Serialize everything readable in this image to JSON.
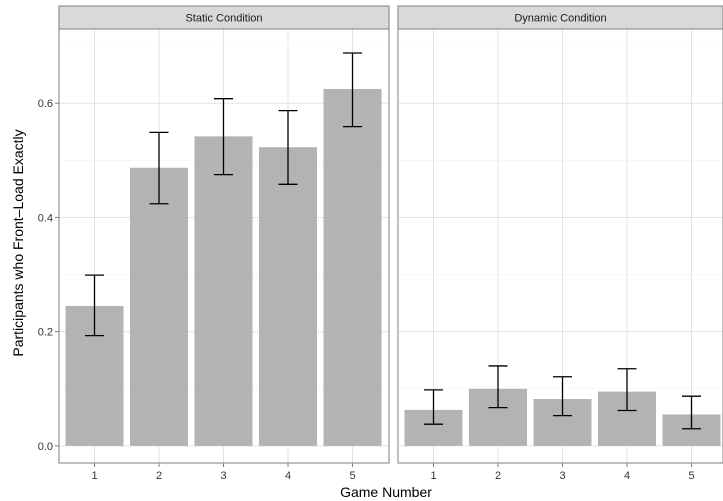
{
  "chart_data": {
    "type": "bar",
    "xlabel": "Game Number",
    "ylabel": "Participants who Front–Load Exactly",
    "ylim": [
      -0.03,
      0.73
    ],
    "yticks": [
      0.0,
      0.2,
      0.4,
      0.6
    ],
    "ytick_labels": [
      "0.0",
      "0.2",
      "0.4",
      "0.6"
    ],
    "categories": [
      "1",
      "2",
      "3",
      "4",
      "5"
    ],
    "bar_color": "#b3b3b3",
    "errorbar_color": "#000000",
    "grid": true,
    "facets": [
      {
        "title": "Static Condition",
        "values": [
          0.245,
          0.487,
          0.542,
          0.523,
          0.625
        ],
        "err_low": [
          0.193,
          0.424,
          0.475,
          0.458,
          0.559
        ],
        "err_high": [
          0.299,
          0.549,
          0.608,
          0.587,
          0.688
        ]
      },
      {
        "title": "Dynamic Condition",
        "values": [
          0.063,
          0.1,
          0.082,
          0.095,
          0.055
        ],
        "err_low": [
          0.038,
          0.067,
          0.053,
          0.062,
          0.03
        ],
        "err_high": [
          0.098,
          0.14,
          0.121,
          0.135,
          0.087
        ]
      }
    ]
  }
}
